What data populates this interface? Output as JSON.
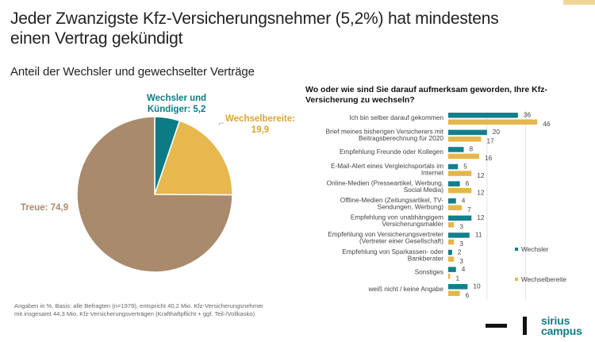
{
  "header": {
    "title_line1": "Jeder Zwanzigste Kfz-Versicherungsnehmer (5,2%) hat mindestens",
    "title_line2": "einen Vertrag gekündigt",
    "subtitle": "Anteil der Wechsler und gewechselter Verträge"
  },
  "footnote": {
    "line1": "Angaben in %, Basis: alle Befragten (n=1979), entspricht  40,2 Mio. Kfz-Versicherungsnehmer",
    "line2": "mit insgesamt 44,3 Mio. Kfz-Versicherungsverträgen (Krafthaftpflicht  + ggf. Teil-/Vollkasko)"
  },
  "logo": {
    "line1": "sirius",
    "line2": "campus"
  },
  "chart_data": [
    {
      "type": "pie",
      "title": "Anteil der Wechsler und gewechselter Verträge",
      "slices": [
        {
          "label": "Wechsler und Kündiger",
          "label_line1": "Wechsler und",
          "label_line2": "Kündiger: 5,2",
          "value": 5.2,
          "color": "#0b7c86"
        },
        {
          "label": "Wechselbereite",
          "label_line1": "Wechselbereite:",
          "label_line2": "19,9",
          "value": 19.9,
          "color": "#e6b84d"
        },
        {
          "label": "Treue",
          "label_line1": "Treue: 74,9",
          "value": 74.9,
          "color": "#a98a6c"
        }
      ],
      "unit": "%"
    },
    {
      "type": "bar",
      "orientation": "horizontal",
      "title_line1": "Wo oder wie sind Sie darauf aufmerksam geworden, Ihre Kfz-",
      "title_line2": "Versicherung zu wechseln?",
      "categories": [
        [
          "Ich bin selber darauf gekommen"
        ],
        [
          "Brief meines bisherigen Versicherers mit",
          "Beitragsberechnung für 2020"
        ],
        [
          "Empfehlung Freunde oder Kollegen"
        ],
        [
          "E-Mail-Alert eines Vergleichsportals im",
          "Internet"
        ],
        [
          "Online-Medien (Presseartikel, Werbung,",
          "Social Media)"
        ],
        [
          "Offline-Medien (Zeitungsartikel, TV-",
          "Sendungen, Werbung)"
        ],
        [
          "Empfehlung von unabhängigem",
          "Versicherungsmakler"
        ],
        [
          "Empfehlung von Versicherungsvertreter",
          "(Vertreter einer Gesellschaft)"
        ],
        [
          "Empfehlung von Sparkassen- oder",
          "Bankberater"
        ],
        [
          "Sonstiges"
        ],
        [
          "weiß nicht / keine Angabe"
        ]
      ],
      "series": [
        {
          "name": "Wechsler",
          "color": "#127f8c",
          "values": [
            36,
            20,
            8,
            5,
            6,
            4,
            12,
            11,
            2,
            4,
            10
          ]
        },
        {
          "name": "Wechselbereite",
          "color": "#e5b64c",
          "values": [
            46,
            17,
            16,
            12,
            12,
            7,
            3,
            3,
            3,
            1,
            6
          ]
        }
      ],
      "xlim": [
        0,
        60
      ],
      "gridlines": [
        20,
        40
      ],
      "legend": "right",
      "unit": "%"
    }
  ]
}
